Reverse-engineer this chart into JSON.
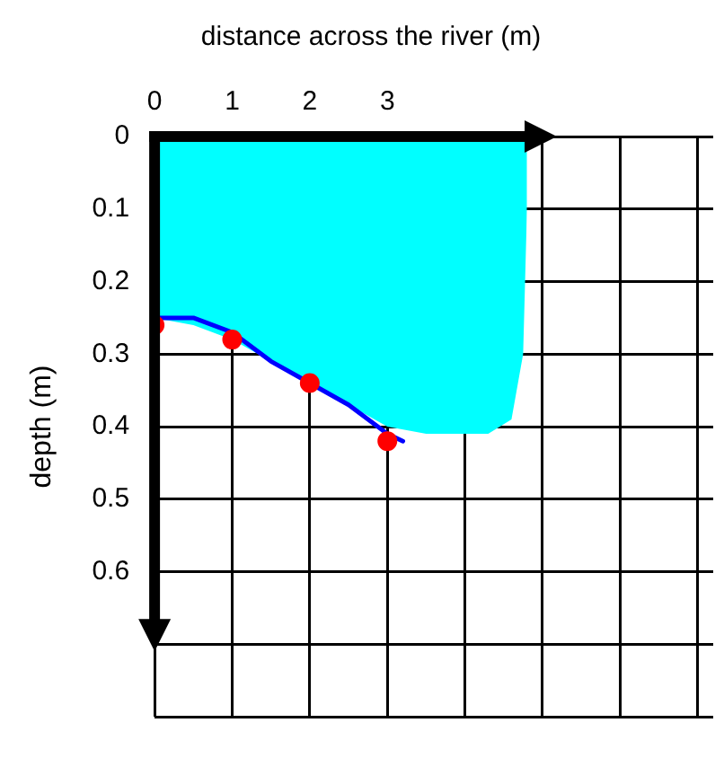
{
  "chart_data": {
    "type": "scatter",
    "title": "distance across the river (m)",
    "ylabel": "depth (m)",
    "xlim": [
      0,
      7.2
    ],
    "xticks": [
      0,
      1,
      2,
      3,
      {
        "value": 4,
        "label": null
      },
      {
        "value": 5,
        "label": null
      },
      {
        "value": 6,
        "label": null
      },
      {
        "value": 7,
        "label": null
      }
    ],
    "ylim": [
      0.8,
      0
    ],
    "yticks": [
      0,
      0.1,
      0.2,
      0.3,
      0.4,
      0.5,
      0.6,
      {
        "value": 0.7,
        "label": null
      },
      {
        "value": 0.8,
        "label": null
      }
    ],
    "grid": true,
    "legend": false,
    "marker": "circle",
    "series": [
      {
        "type": "area",
        "color": "#00ffff",
        "marker": "none",
        "x": [
          0,
          0.5,
          1,
          1.5,
          2,
          2.5,
          3,
          3.5,
          4,
          4.3,
          4.6,
          4.75,
          4.8,
          4.8
        ],
        "values": [
          0.25,
          0.26,
          0.28,
          0.31,
          0.34,
          0.37,
          0.4,
          0.41,
          0.41,
          0.41,
          0.39,
          0.3,
          0.1,
          0
        ]
      },
      {
        "type": "line",
        "color": "#0000ff",
        "marker": "none",
        "x": [
          0,
          0.5,
          1,
          1.5,
          2,
          2.5,
          3,
          3.2
        ],
        "values": [
          0.25,
          0.25,
          0.27,
          0.31,
          0.34,
          0.37,
          0.41,
          0.42
        ]
      },
      {
        "color": "#ff0000",
        "x": [
          0,
          1,
          2,
          3
        ],
        "values": [
          0.26,
          0.28,
          0.34,
          0.42
        ]
      }
    ]
  }
}
